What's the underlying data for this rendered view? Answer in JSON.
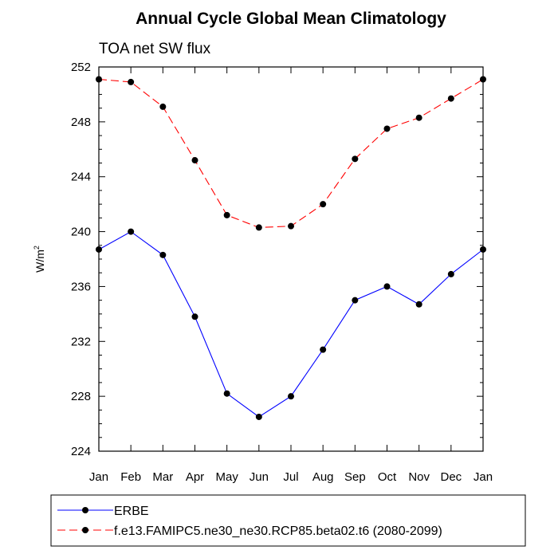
{
  "chart_data": {
    "type": "line",
    "title": "Annual Cycle Global Mean Climatology",
    "subtitle": "TOA net SW flux",
    "ylabel": "W/m",
    "ylabel_superscript": "2",
    "ylim": [
      224,
      252
    ],
    "yticks": [
      224,
      228,
      232,
      236,
      240,
      244,
      248,
      252
    ],
    "yminor_step": 1,
    "categories": [
      "Jan",
      "Feb",
      "Mar",
      "Apr",
      "May",
      "Jun",
      "Jul",
      "Aug",
      "Sep",
      "Oct",
      "Nov",
      "Dec",
      "Jan"
    ],
    "series": [
      {
        "name": "ERBE",
        "color": "#0000ff",
        "dash": "solid",
        "marker": "dot",
        "values": [
          238.7,
          240.0,
          238.3,
          233.8,
          228.2,
          226.5,
          228.0,
          231.4,
          235.0,
          236.0,
          234.7,
          236.9,
          238.7
        ]
      },
      {
        "name": "f.e13.FAMIPC5.ne30_ne30.RCP85.beta02.t6 (2080-2099)",
        "color": "#ff0000",
        "dash": "dashed",
        "marker": "dot",
        "values": [
          251.1,
          250.9,
          249.1,
          245.2,
          241.2,
          240.3,
          240.4,
          242.0,
          245.3,
          247.5,
          248.3,
          249.7,
          251.1
        ]
      }
    ],
    "legend_position": "bottom"
  }
}
